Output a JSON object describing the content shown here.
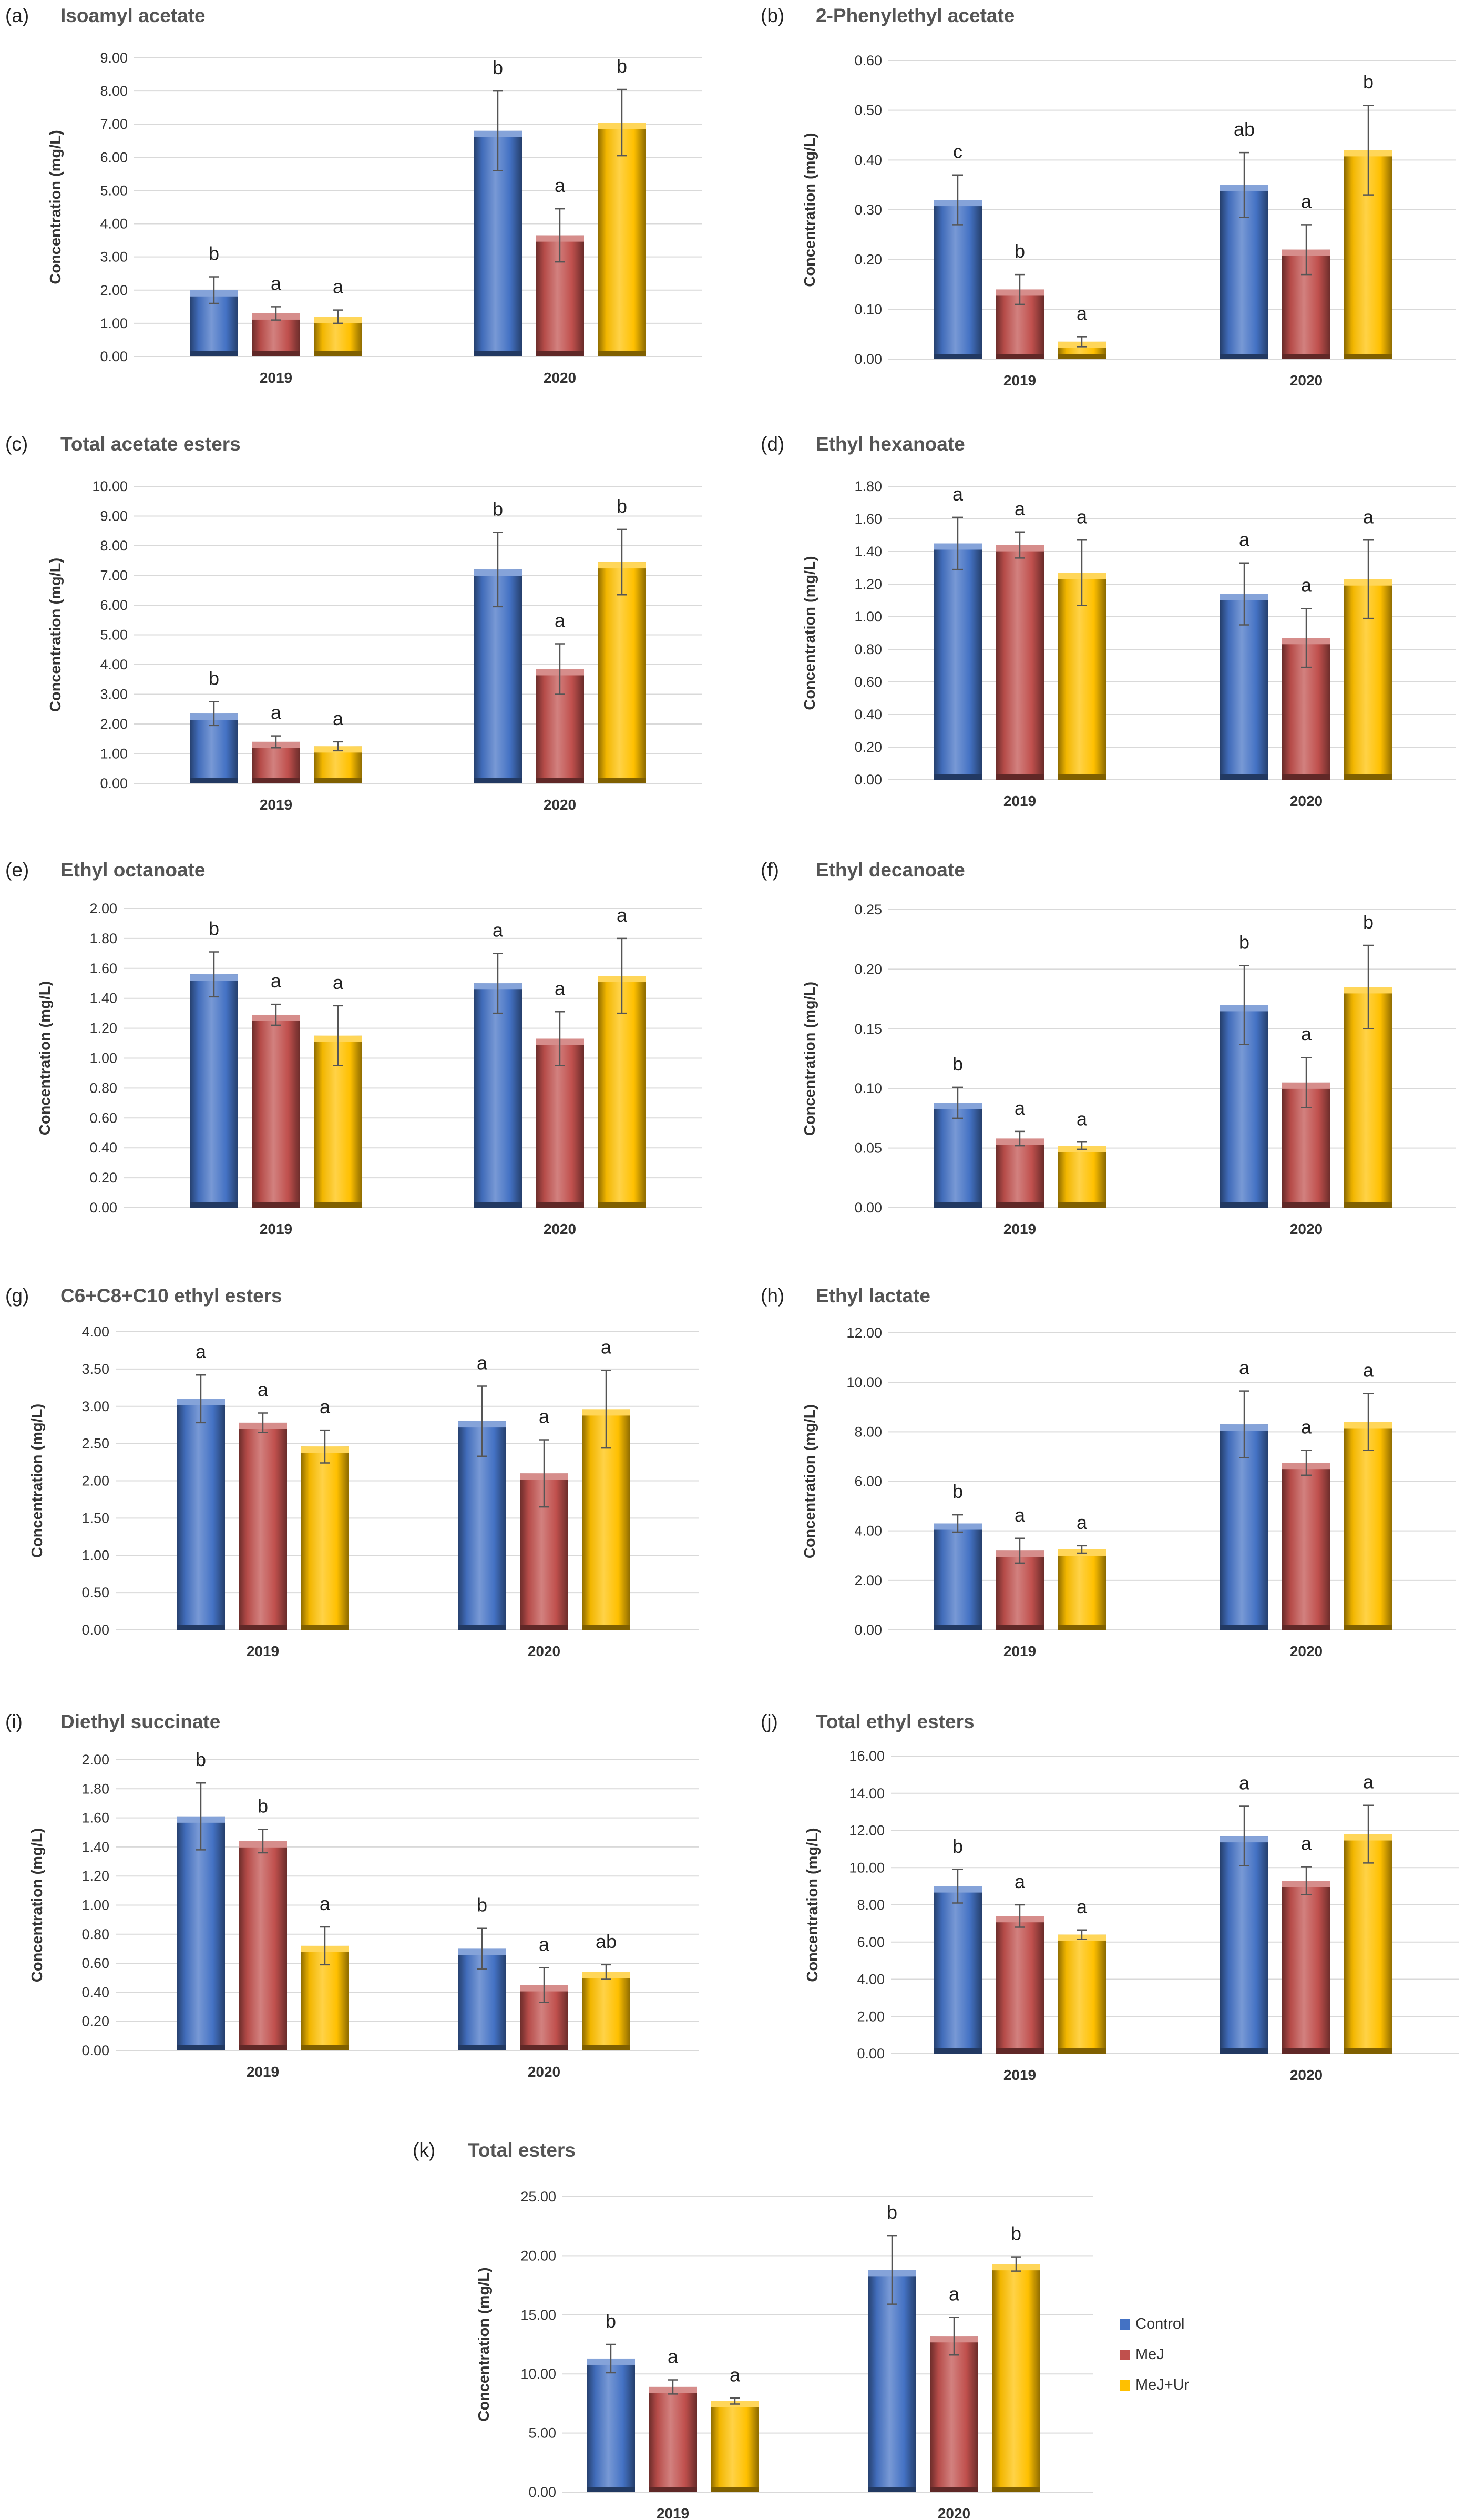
{
  "legend": {
    "items": [
      {
        "label": "Control",
        "color": "#4472C4"
      },
      {
        "label": "MeJ",
        "color": "#C0504D"
      },
      {
        "label": "MeJ+Ur",
        "color": "#FFC000"
      }
    ]
  },
  "chart_data": [
    {
      "id": "a",
      "panel_label": "(a)",
      "type": "bar",
      "title": "Isoamyl acetate",
      "ylabel": "Concentration (mg/L)",
      "xlabel": "",
      "categories": [
        "2019",
        "2020"
      ],
      "ylim": [
        0,
        9
      ],
      "yticks": [
        "0.00",
        "1.00",
        "2.00",
        "3.00",
        "4.00",
        "5.00",
        "6.00",
        "7.00",
        "8.00",
        "9.00"
      ],
      "series": [
        {
          "name": "Control",
          "values": [
            2.0,
            6.8
          ],
          "errors": [
            0.4,
            1.2
          ],
          "letters": [
            "b",
            "b"
          ]
        },
        {
          "name": "MeJ",
          "values": [
            1.3,
            3.65
          ],
          "errors": [
            0.2,
            0.8
          ],
          "letters": [
            "a",
            "a"
          ]
        },
        {
          "name": "MeJ+Ur",
          "values": [
            1.2,
            7.05
          ],
          "errors": [
            0.2,
            1.0
          ],
          "letters": [
            "a",
            "b"
          ]
        }
      ]
    },
    {
      "id": "b",
      "panel_label": "(b)",
      "type": "bar",
      "title": "2-Phenylethyl acetate",
      "ylabel": "Concentration (mg/L)",
      "xlabel": "",
      "categories": [
        "2019",
        "2020"
      ],
      "ylim": [
        0,
        0.6
      ],
      "yticks": [
        "0.00",
        "0.10",
        "0.20",
        "0.30",
        "0.40",
        "0.50",
        "0.60"
      ],
      "series": [
        {
          "name": "Control",
          "values": [
            0.32,
            0.35
          ],
          "errors": [
            0.05,
            0.065
          ],
          "letters": [
            "c",
            "ab"
          ]
        },
        {
          "name": "MeJ",
          "values": [
            0.14,
            0.22
          ],
          "errors": [
            0.03,
            0.05
          ],
          "letters": [
            "b",
            "a"
          ]
        },
        {
          "name": "MeJ+Ur",
          "values": [
            0.035,
            0.42
          ],
          "errors": [
            0.01,
            0.09
          ],
          "letters": [
            "a",
            "b"
          ]
        }
      ]
    },
    {
      "id": "c",
      "panel_label": "(c)",
      "type": "bar",
      "title": "Total acetate esters",
      "ylabel": "Concentration (mg/L)",
      "xlabel": "",
      "categories": [
        "2019",
        "2020"
      ],
      "ylim": [
        0,
        10
      ],
      "yticks": [
        "0.00",
        "1.00",
        "2.00",
        "3.00",
        "4.00",
        "5.00",
        "6.00",
        "7.00",
        "8.00",
        "9.00",
        "10.00"
      ],
      "series": [
        {
          "name": "Control",
          "values": [
            2.35,
            7.2
          ],
          "errors": [
            0.4,
            1.25
          ],
          "letters": [
            "b",
            "b"
          ]
        },
        {
          "name": "MeJ",
          "values": [
            1.4,
            3.85
          ],
          "errors": [
            0.2,
            0.85
          ],
          "letters": [
            "a",
            "a"
          ]
        },
        {
          "name": "MeJ+Ur",
          "values": [
            1.25,
            7.45
          ],
          "errors": [
            0.15,
            1.1
          ],
          "letters": [
            "a",
            "b"
          ]
        }
      ]
    },
    {
      "id": "d",
      "panel_label": "(d)",
      "type": "bar",
      "title": "Ethyl hexanoate",
      "ylabel": "Concentration (mg/L)",
      "xlabel": "",
      "categories": [
        "2019",
        "2020"
      ],
      "ylim": [
        0,
        1.8
      ],
      "yticks": [
        "0.00",
        "0.20",
        "0.40",
        "0.60",
        "0.80",
        "1.00",
        "1.20",
        "1.40",
        "1.60",
        "1.80"
      ],
      "series": [
        {
          "name": "Control",
          "values": [
            1.45,
            1.14
          ],
          "errors": [
            0.16,
            0.19
          ],
          "letters": [
            "a",
            "a"
          ]
        },
        {
          "name": "MeJ",
          "values": [
            1.44,
            0.87
          ],
          "errors": [
            0.08,
            0.18
          ],
          "letters": [
            "a",
            "a"
          ]
        },
        {
          "name": "MeJ+Ur",
          "values": [
            1.27,
            1.23
          ],
          "errors": [
            0.2,
            0.24
          ],
          "letters": [
            "a",
            "a"
          ]
        }
      ]
    },
    {
      "id": "e",
      "panel_label": "(e)",
      "type": "bar",
      "title": "Ethyl octanoate",
      "ylabel": "Concentration (mg/L)",
      "xlabel": "",
      "categories": [
        "2019",
        "2020"
      ],
      "ylim": [
        0,
        2.0
      ],
      "yticks": [
        "0.00",
        "0.20",
        "0.40",
        "0.60",
        "0.80",
        "1.00",
        "1.20",
        "1.40",
        "1.60",
        "1.80",
        "2.00"
      ],
      "series": [
        {
          "name": "Control",
          "values": [
            1.56,
            1.5
          ],
          "errors": [
            0.15,
            0.2
          ],
          "letters": [
            "b",
            "a"
          ]
        },
        {
          "name": "MeJ",
          "values": [
            1.29,
            1.13
          ],
          "errors": [
            0.07,
            0.18
          ],
          "letters": [
            "a",
            "a"
          ]
        },
        {
          "name": "MeJ+Ur",
          "values": [
            1.15,
            1.55
          ],
          "errors": [
            0.2,
            0.25
          ],
          "letters": [
            "a",
            "a"
          ]
        }
      ]
    },
    {
      "id": "f",
      "panel_label": "(f)",
      "type": "bar",
      "title": "Ethyl decanoate",
      "ylabel": "Concentration (mg/L)",
      "xlabel": "",
      "categories": [
        "2019",
        "2020"
      ],
      "ylim": [
        0,
        0.25
      ],
      "yticks": [
        "0.00",
        "0.05",
        "0.10",
        "0.15",
        "0.20",
        "0.25"
      ],
      "series": [
        {
          "name": "Control",
          "values": [
            0.088,
            0.17
          ],
          "errors": [
            0.013,
            0.033
          ],
          "letters": [
            "b",
            "b"
          ]
        },
        {
          "name": "MeJ",
          "values": [
            0.058,
            0.105
          ],
          "errors": [
            0.006,
            0.021
          ],
          "letters": [
            "a",
            "a"
          ]
        },
        {
          "name": "MeJ+Ur",
          "values": [
            0.052,
            0.185
          ],
          "errors": [
            0.003,
            0.035
          ],
          "letters": [
            "a",
            "b"
          ]
        }
      ]
    },
    {
      "id": "g",
      "panel_label": "(g)",
      "type": "bar",
      "title": "C6+C8+C10  ethyl esters",
      "ylabel": "Concentration (mg/L)",
      "xlabel": "",
      "categories": [
        "2019",
        "2020"
      ],
      "ylim": [
        0,
        4.0
      ],
      "yticks": [
        "0.00",
        "0.50",
        "1.00",
        "1.50",
        "2.00",
        "2.50",
        "3.00",
        "3.50",
        "4.00"
      ],
      "series": [
        {
          "name": "Control",
          "values": [
            3.1,
            2.8
          ],
          "errors": [
            0.32,
            0.47
          ],
          "letters": [
            "a",
            "a"
          ]
        },
        {
          "name": "MeJ",
          "values": [
            2.78,
            2.1
          ],
          "errors": [
            0.13,
            0.45
          ],
          "letters": [
            "a",
            "a"
          ]
        },
        {
          "name": "MeJ+Ur",
          "values": [
            2.46,
            2.96
          ],
          "errors": [
            0.22,
            0.52
          ],
          "letters": [
            "a",
            "a"
          ]
        }
      ]
    },
    {
      "id": "h",
      "panel_label": "(h)",
      "type": "bar",
      "title": "Ethyl lactate",
      "ylabel": "Concentration (mg/L)",
      "xlabel": "",
      "categories": [
        "2019",
        "2020"
      ],
      "ylim": [
        0,
        12
      ],
      "yticks": [
        "0.00",
        "2.00",
        "4.00",
        "6.00",
        "8.00",
        "10.00",
        "12.00"
      ],
      "series": [
        {
          "name": "Control",
          "values": [
            4.3,
            8.3
          ],
          "errors": [
            0.35,
            1.35
          ],
          "letters": [
            "b",
            "a"
          ]
        },
        {
          "name": "MeJ",
          "values": [
            3.2,
            6.75
          ],
          "errors": [
            0.5,
            0.5
          ],
          "letters": [
            "a",
            "a"
          ]
        },
        {
          "name": "MeJ+Ur",
          "values": [
            3.25,
            8.4
          ],
          "errors": [
            0.15,
            1.15
          ],
          "letters": [
            "a",
            "a"
          ]
        }
      ]
    },
    {
      "id": "i",
      "panel_label": "(i)",
      "type": "bar",
      "title": "Diethyl succinate",
      "ylabel": "Concentration (mg/L)",
      "xlabel": "",
      "categories": [
        "2019",
        "2020"
      ],
      "ylim": [
        0,
        2.0
      ],
      "yticks": [
        "0.00",
        "0.20",
        "0.40",
        "0.60",
        "0.80",
        "1.00",
        "1.20",
        "1.40",
        "1.60",
        "1.80",
        "2.00"
      ],
      "series": [
        {
          "name": "Control",
          "values": [
            1.61,
            0.7
          ],
          "errors": [
            0.23,
            0.14
          ],
          "letters": [
            "b",
            "b"
          ]
        },
        {
          "name": "MeJ",
          "values": [
            1.44,
            0.45
          ],
          "errors": [
            0.08,
            0.12
          ],
          "letters": [
            "b",
            "a"
          ]
        },
        {
          "name": "MeJ+Ur",
          "values": [
            0.72,
            0.54
          ],
          "errors": [
            0.13,
            0.05
          ],
          "letters": [
            "a",
            "ab"
          ]
        }
      ]
    },
    {
      "id": "j",
      "panel_label": "(j)",
      "type": "bar",
      "title": "Total ethyl esters",
      "ylabel": "Concentration (mg/L)",
      "xlabel": "",
      "categories": [
        "2019",
        "2020"
      ],
      "ylim": [
        0,
        16
      ],
      "yticks": [
        "0.00",
        "2.00",
        "4.00",
        "6.00",
        "8.00",
        "10.00",
        "12.00",
        "14.00",
        "16.00"
      ],
      "series": [
        {
          "name": "Control",
          "values": [
            9.0,
            11.7
          ],
          "errors": [
            0.9,
            1.6
          ],
          "letters": [
            "b",
            "a"
          ]
        },
        {
          "name": "MeJ",
          "values": [
            7.4,
            9.3
          ],
          "errors": [
            0.6,
            0.75
          ],
          "letters": [
            "a",
            "a"
          ]
        },
        {
          "name": "MeJ+Ur",
          "values": [
            6.4,
            11.8
          ],
          "errors": [
            0.25,
            1.55
          ],
          "letters": [
            "a",
            "a"
          ]
        }
      ]
    },
    {
      "id": "k",
      "panel_label": "(k)",
      "type": "bar",
      "title": "Total esters",
      "ylabel": "Concentration (mg/L)",
      "xlabel": "",
      "categories": [
        "2019",
        "2020"
      ],
      "ylim": [
        0,
        25
      ],
      "yticks": [
        "0.00",
        "5.00",
        "10.00",
        "15.00",
        "20.00",
        "25.00"
      ],
      "series": [
        {
          "name": "Control",
          "values": [
            11.3,
            18.8
          ],
          "errors": [
            1.2,
            2.9
          ],
          "letters": [
            "b",
            "b"
          ]
        },
        {
          "name": "MeJ",
          "values": [
            8.9,
            13.2
          ],
          "errors": [
            0.6,
            1.6
          ],
          "letters": [
            "a",
            "a"
          ]
        },
        {
          "name": "MeJ+Ur",
          "values": [
            7.7,
            19.3
          ],
          "errors": [
            0.25,
            0.6
          ],
          "letters": [
            "a",
            "b"
          ]
        }
      ]
    }
  ]
}
